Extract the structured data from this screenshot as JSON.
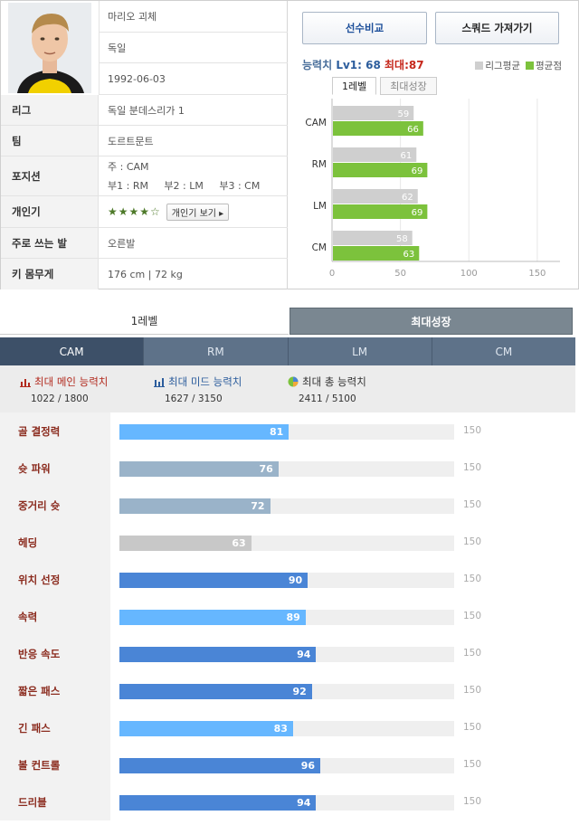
{
  "player": {
    "name": "마리오 괴체",
    "nation": "독일",
    "birth": "1992-06-03"
  },
  "info_rows": [
    {
      "label": "리그",
      "value": "독일 분데스리가 1"
    },
    {
      "label": "팀",
      "value": "도르트문트"
    },
    {
      "label": "포지션",
      "primary": "주 : CAM",
      "secondary": "부1 : RM     부2 : LM     부3 : CM"
    },
    {
      "label": "개인기",
      "stars": "★★★★☆",
      "button": "개인기 보기 ▸"
    },
    {
      "label": "주로 쓰는 발",
      "value": "오른발"
    },
    {
      "label": "키 몸무게",
      "value": "176 cm | 72 kg"
    }
  ],
  "buttons": {
    "compare": "선수비교",
    "squad": "스쿼드 가져가기"
  },
  "ability": {
    "label": "능력치",
    "lv": "Lv1: 68",
    "max": "최대:87"
  },
  "legend": {
    "league": "리그평균",
    "avg": "평균점"
  },
  "mini_tabs": [
    "1레벨",
    "최대성장"
  ],
  "colors": {
    "league": "#cfcfcf",
    "avg": "#7cc23c",
    "dark_blue": "#4a85d6",
    "light_blue": "#66b7ff",
    "gray_blue": "#9ab3c9",
    "gray": "#c8c8c8"
  },
  "chart_data": {
    "type": "bar",
    "orientation": "horizontal",
    "categories": [
      "CAM",
      "RM",
      "LM",
      "CM"
    ],
    "series": [
      {
        "name": "리그평균",
        "values": [
          59,
          61,
          62,
          58
        ]
      },
      {
        "name": "평균점",
        "values": [
          66,
          69,
          69,
          63
        ]
      }
    ],
    "xlim": [
      0,
      160
    ],
    "xticks": [
      "0",
      "50",
      "100",
      "150"
    ]
  },
  "main_tabs": [
    "1레벨",
    "최대성장"
  ],
  "position_tabs": [
    "CAM",
    "RM",
    "LM",
    "CM"
  ],
  "summary": [
    {
      "label": "최대 메인 능력치",
      "value": "1022 / 1800",
      "icon": "bar-chart-icon",
      "color": "#b22a1e"
    },
    {
      "label": "최대 미드 능력치",
      "value": "1627 / 3150",
      "icon": "bar-chart-icon",
      "color": "#2b5c9c"
    },
    {
      "label": "최대 총 능력치",
      "value": "2411 / 5100",
      "icon": "pie-chart-icon",
      "color": "#333"
    }
  ],
  "stats": [
    {
      "name": "골 결정력",
      "value": 81,
      "color": "light_blue"
    },
    {
      "name": "슛 파워",
      "value": 76,
      "color": "gray_blue"
    },
    {
      "name": "중거리 슛",
      "value": 72,
      "color": "gray_blue"
    },
    {
      "name": "헤딩",
      "value": 63,
      "color": "gray"
    },
    {
      "name": "위치 선정",
      "value": 90,
      "color": "dark_blue"
    },
    {
      "name": "속력",
      "value": 89,
      "color": "light_blue"
    },
    {
      "name": "반응 속도",
      "value": 94,
      "color": "dark_blue"
    },
    {
      "name": "짧은 패스",
      "value": 92,
      "color": "dark_blue"
    },
    {
      "name": "긴 패스",
      "value": 83,
      "color": "light_blue"
    },
    {
      "name": "볼 컨트롤",
      "value": 96,
      "color": "dark_blue"
    },
    {
      "name": "드리블",
      "value": 94,
      "color": "dark_blue"
    }
  ],
  "stat_max": "150"
}
